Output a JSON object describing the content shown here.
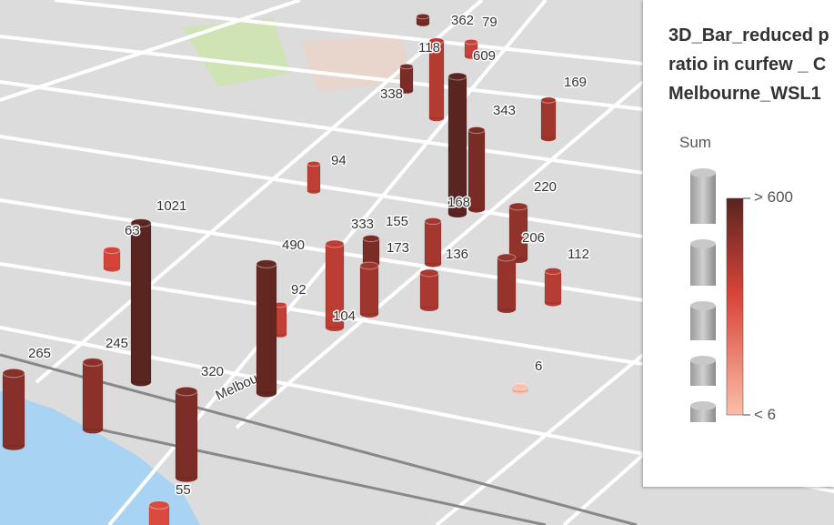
{
  "map": {
    "street_label": "Melbourne",
    "bars": [
      {
        "label": 362,
        "value": 362
      },
      {
        "label": 79,
        "value": 79
      },
      {
        "label": 118,
        "value": 118
      },
      {
        "label": 609,
        "value": 609
      },
      {
        "label": 338,
        "value": 338
      },
      {
        "label": 169,
        "value": 169
      },
      {
        "label": 343,
        "value": 343
      },
      {
        "label": 94,
        "value": 94
      },
      {
        "label": 168,
        "value": 168
      },
      {
        "label": 220,
        "value": 220
      },
      {
        "label": 1021,
        "value": 1021
      },
      {
        "label": 63,
        "value": 63
      },
      {
        "label": 333,
        "value": 333
      },
      {
        "label": 155,
        "value": 155
      },
      {
        "label": 490,
        "value": 490
      },
      {
        "label": 173,
        "value": 173
      },
      {
        "label": 136,
        "value": 136
      },
      {
        "label": 206,
        "value": 206
      },
      {
        "label": 112,
        "value": 112
      },
      {
        "label": 92,
        "value": 92
      },
      {
        "label": 104,
        "value": 104
      },
      {
        "label": 265,
        "value": 265
      },
      {
        "label": 245,
        "value": 245
      },
      {
        "label": 320,
        "value": 320
      },
      {
        "label": 6,
        "value": 6
      },
      {
        "label": 55,
        "value": 55
      }
    ]
  },
  "legend": {
    "title_lines": [
      "3D_Bar_reduced p",
      "ratio in curfew _ C",
      "Melbourne_WSL1"
    ],
    "field": "Sum",
    "max_label": "> 600",
    "min_label": "< 6"
  }
}
